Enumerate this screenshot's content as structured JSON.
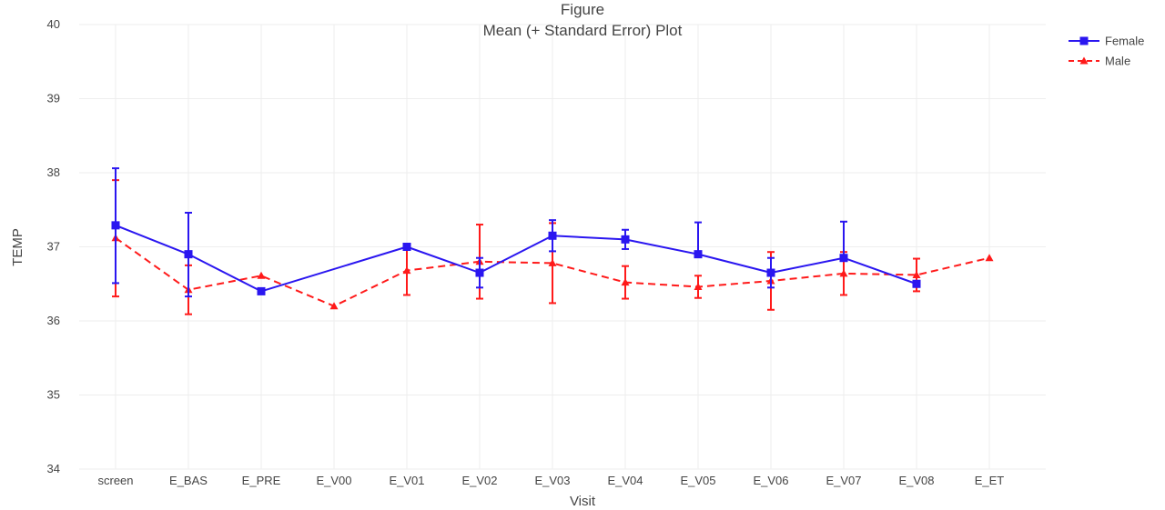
{
  "chart_data": {
    "type": "line",
    "title": "Figure",
    "subtitle": "Mean (+ Standard Error) Plot",
    "xlabel": "Visit",
    "ylabel": "TEMP",
    "ylim": [
      34,
      40
    ],
    "yticks": [
      "34",
      "35",
      "36",
      "37",
      "38",
      "39",
      "40"
    ],
    "categories": [
      "screen",
      "E_BAS",
      "E_PRE",
      "E_V00",
      "E_V01",
      "E_V02",
      "E_V03",
      "E_V04",
      "E_V05",
      "E_V06",
      "E_V07",
      "E_V08",
      "E_ET"
    ],
    "grid": true,
    "legend_position": "top-right",
    "series": [
      {
        "name": "Female",
        "color": "#2a16f0",
        "line": "solid",
        "marker": "square",
        "values": [
          37.29,
          36.9,
          36.4,
          null,
          37.0,
          36.65,
          37.15,
          37.1,
          36.9,
          36.65,
          36.85,
          36.5,
          null
        ],
        "err_low": [
          36.51,
          36.33,
          null,
          null,
          null,
          36.45,
          36.94,
          36.97,
          36.9,
          36.45,
          36.85,
          36.5,
          null
        ],
        "err_high": [
          38.06,
          37.46,
          null,
          null,
          null,
          36.85,
          37.36,
          37.23,
          37.33,
          36.85,
          37.34,
          36.5,
          null
        ]
      },
      {
        "name": "Male",
        "color": "#ff1a1a",
        "line": "dashed",
        "marker": "triangle-up",
        "values": [
          37.12,
          36.42,
          36.61,
          36.2,
          36.68,
          36.8,
          36.78,
          36.52,
          36.46,
          36.54,
          36.64,
          36.62,
          36.85
        ],
        "err_low": [
          36.33,
          36.09,
          null,
          null,
          36.35,
          36.3,
          36.24,
          36.3,
          36.31,
          36.15,
          36.35,
          36.4,
          null
        ],
        "err_high": [
          37.9,
          36.75,
          null,
          null,
          37.01,
          37.3,
          37.32,
          36.74,
          36.61,
          36.93,
          36.93,
          36.84,
          null
        ]
      }
    ]
  }
}
